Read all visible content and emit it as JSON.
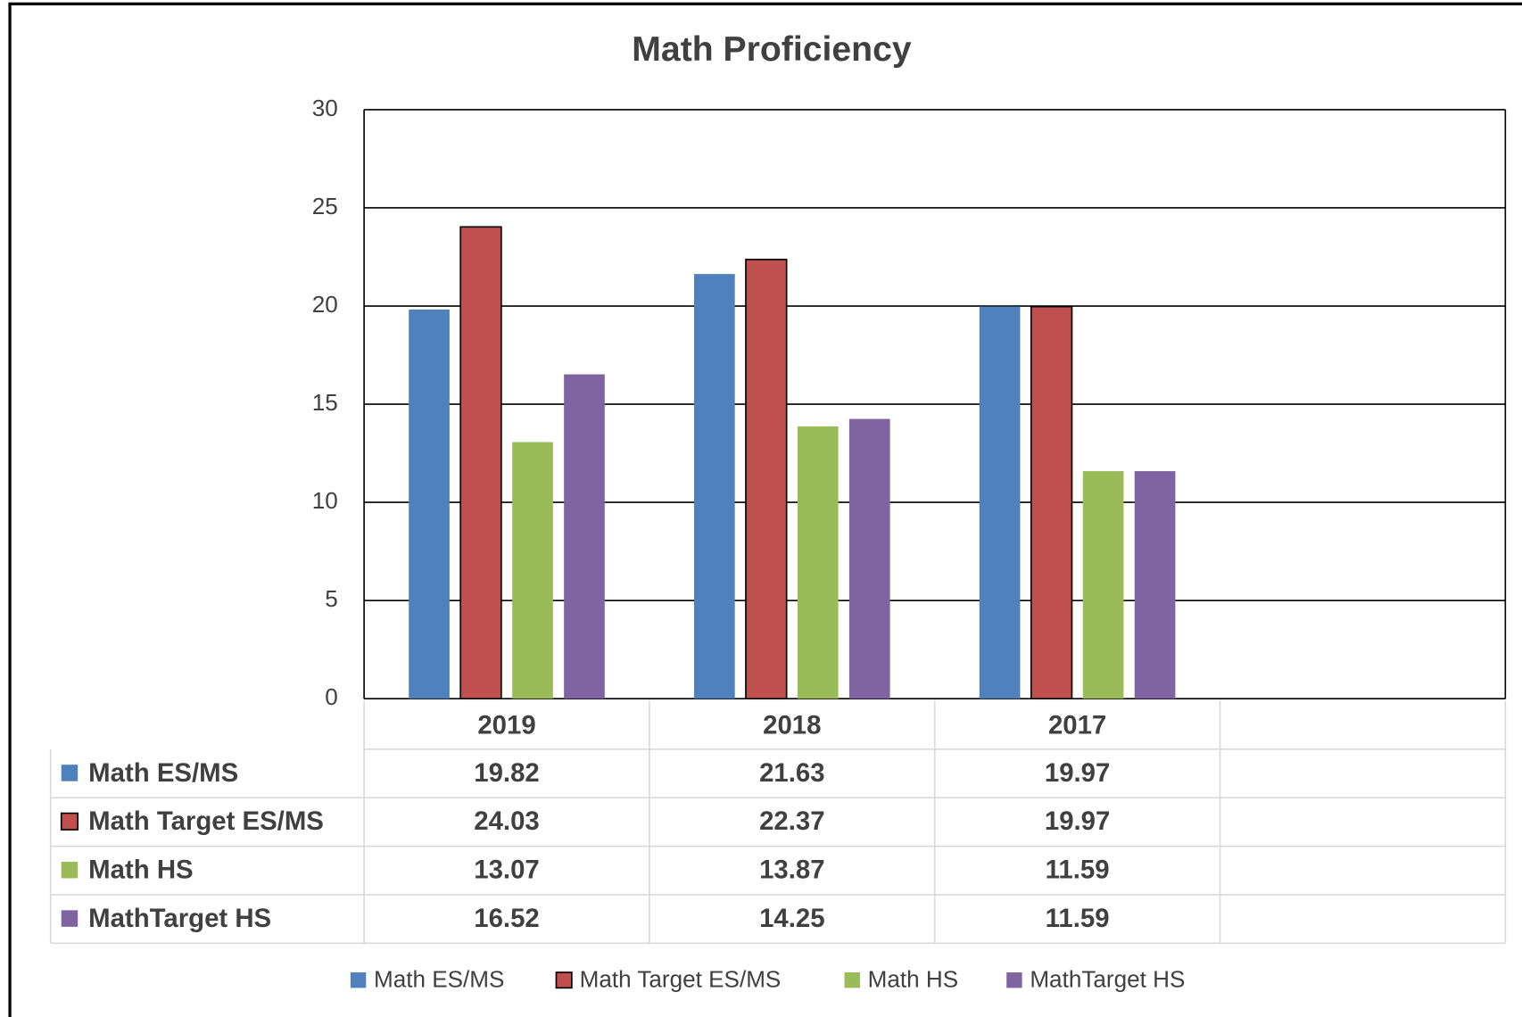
{
  "chart_data": {
    "type": "bar",
    "title": "Math Proficiency",
    "categories": [
      "2019",
      "2018",
      "2017",
      null
    ],
    "series": [
      {
        "name": "Math ES/MS",
        "color": "#4f81bd",
        "values": [
          19.82,
          21.63,
          19.97,
          null
        ]
      },
      {
        "name": "Math Target ES/MS",
        "color": "#c0504d",
        "edgecolor": "#000000",
        "values": [
          24.03,
          22.37,
          19.97,
          null
        ]
      },
      {
        "name": "Math HS",
        "color": "#9bbb59",
        "values": [
          13.07,
          13.87,
          11.59,
          null
        ]
      },
      {
        "name": "MathTarget HS",
        "color": "#8064a2",
        "values": [
          16.52,
          14.25,
          11.59,
          null
        ]
      }
    ],
    "ylim": [
      0,
      30
    ],
    "yticks": [
      0,
      5,
      10,
      15,
      20,
      25,
      30
    ],
    "grid": true,
    "data_table": true,
    "legend": "bottom"
  }
}
